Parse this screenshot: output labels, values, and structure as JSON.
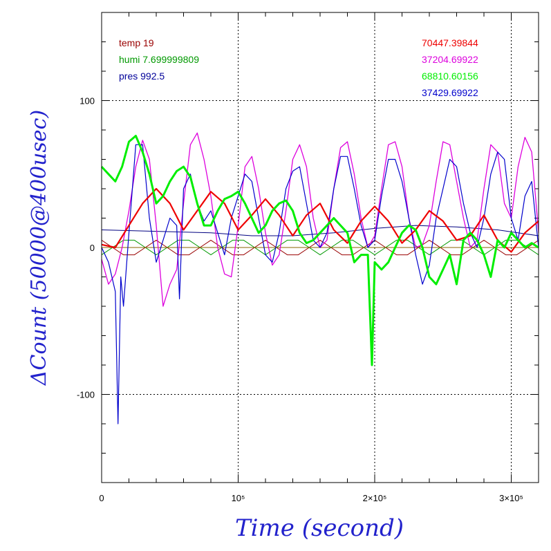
{
  "chart_data": {
    "type": "line",
    "xlabel": "Time (second)",
    "ylabel": "ΔCount (50000@400usec)",
    "xlim": [
      0,
      320000
    ],
    "ylim": [
      -160,
      160
    ],
    "x_ticks": [
      {
        "value": 0,
        "label": "0"
      },
      {
        "value": 100000,
        "label": "10⁵"
      },
      {
        "value": 200000,
        "label": "2×10⁵"
      },
      {
        "value": 300000,
        "label": "3×10⁵"
      }
    ],
    "y_ticks": [
      {
        "value": 100,
        "label": "100"
      },
      {
        "value": 0,
        "label": "0"
      },
      {
        "value": -100,
        "label": "-100"
      }
    ],
    "grid": true,
    "legend_left": [
      {
        "text": "temp 19",
        "color": "#990000"
      },
      {
        "text": "humi 7.699999809",
        "color": "#009900"
      },
      {
        "text": "pres 992.5",
        "color": "#000099"
      }
    ],
    "legend_right": [
      {
        "text": "70447.39844",
        "color": "#ee0000"
      },
      {
        "text": "37204.69922",
        "color": "#dd00dd"
      },
      {
        "text": "68810.60156",
        "color": "#00ee00"
      },
      {
        "text": "37429.69922",
        "color": "#0000cc"
      }
    ],
    "series": [
      {
        "color": "#ee0000",
        "width": 2.2,
        "x": [
          0,
          10000,
          20000,
          30000,
          40000,
          50000,
          60000,
          70000,
          80000,
          90000,
          100000,
          110000,
          120000,
          130000,
          140000,
          150000,
          160000,
          170000,
          180000,
          190000,
          200000,
          210000,
          220000,
          230000,
          240000,
          250000,
          260000,
          270000,
          280000,
          290000,
          300000,
          310000,
          320000
        ],
        "y": [
          2,
          0,
          15,
          30,
          40,
          30,
          12,
          25,
          38,
          30,
          12,
          22,
          33,
          22,
          8,
          22,
          30,
          12,
          3,
          18,
          28,
          18,
          3,
          12,
          25,
          18,
          5,
          8,
          22,
          5,
          -3,
          10,
          18
        ]
      },
      {
        "color": "#dd00dd",
        "width": 1.3,
        "x": [
          0,
          5000,
          10000,
          15000,
          20000,
          25000,
          30000,
          35000,
          40000,
          45000,
          50000,
          55000,
          60000,
          65000,
          70000,
          75000,
          80000,
          85000,
          90000,
          95000,
          100000,
          105000,
          110000,
          115000,
          120000,
          125000,
          130000,
          135000,
          140000,
          145000,
          150000,
          155000,
          160000,
          165000,
          170000,
          175000,
          180000,
          185000,
          190000,
          195000,
          200000,
          205000,
          210000,
          215000,
          220000,
          225000,
          230000,
          235000,
          240000,
          245000,
          250000,
          255000,
          260000,
          265000,
          270000,
          275000,
          280000,
          285000,
          290000,
          295000,
          300000,
          305000,
          310000,
          315000,
          320000
        ],
        "y": [
          -8,
          -25,
          -18,
          0,
          25,
          55,
          73,
          60,
          15,
          -40,
          -25,
          -15,
          30,
          70,
          78,
          60,
          35,
          0,
          -18,
          -20,
          15,
          55,
          62,
          40,
          10,
          -12,
          -5,
          25,
          60,
          70,
          55,
          20,
          0,
          5,
          40,
          68,
          72,
          50,
          20,
          0,
          8,
          40,
          70,
          72,
          55,
          20,
          0,
          2,
          15,
          45,
          72,
          70,
          45,
          20,
          0,
          5,
          40,
          70,
          65,
          30,
          20,
          55,
          75,
          65,
          10
        ]
      },
      {
        "color": "#00ee00",
        "width": 3.0,
        "x": [
          0,
          5000,
          10000,
          15000,
          20000,
          25000,
          30000,
          35000,
          40000,
          45000,
          50000,
          55000,
          60000,
          65000,
          70000,
          75000,
          80000,
          85000,
          90000,
          95000,
          100000,
          105000,
          110000,
          115000,
          120000,
          125000,
          130000,
          135000,
          140000,
          145000,
          150000,
          155000,
          160000,
          165000,
          170000,
          175000,
          180000,
          185000,
          190000,
          195000,
          198000,
          200000,
          205000,
          210000,
          215000,
          220000,
          225000,
          230000,
          235000,
          240000,
          245000,
          250000,
          255000,
          260000,
          265000,
          270000,
          275000,
          280000,
          285000,
          290000,
          295000,
          300000,
          305000,
          310000,
          315000,
          320000
        ],
        "y": [
          55,
          50,
          45,
          55,
          72,
          76,
          65,
          50,
          30,
          35,
          45,
          52,
          55,
          48,
          30,
          15,
          15,
          25,
          33,
          35,
          38,
          30,
          20,
          10,
          15,
          25,
          30,
          32,
          25,
          10,
          3,
          5,
          10,
          15,
          20,
          15,
          10,
          -10,
          -5,
          -5,
          -80,
          -10,
          -15,
          -10,
          0,
          10,
          15,
          12,
          0,
          -20,
          -25,
          -15,
          -5,
          -25,
          5,
          10,
          5,
          -5,
          -20,
          5,
          0,
          10,
          5,
          0,
          3,
          0
        ]
      },
      {
        "color": "#0000cc",
        "width": 1.2,
        "x": [
          0,
          5000,
          10000,
          12000,
          14000,
          16000,
          20000,
          25000,
          30000,
          35000,
          40000,
          45000,
          50000,
          55000,
          57000,
          60000,
          65000,
          70000,
          75000,
          80000,
          85000,
          90000,
          95000,
          100000,
          105000,
          110000,
          115000,
          120000,
          125000,
          130000,
          135000,
          140000,
          145000,
          150000,
          155000,
          160000,
          165000,
          170000,
          175000,
          180000,
          185000,
          190000,
          195000,
          200000,
          205000,
          210000,
          215000,
          220000,
          225000,
          230000,
          235000,
          240000,
          245000,
          250000,
          255000,
          260000,
          265000,
          270000,
          275000,
          280000,
          285000,
          290000,
          295000,
          300000,
          305000,
          310000,
          315000,
          320000
        ],
        "y": [
          0,
          -10,
          -30,
          -120,
          -20,
          -40,
          10,
          70,
          70,
          20,
          -10,
          5,
          20,
          15,
          -35,
          40,
          50,
          30,
          18,
          25,
          10,
          -5,
          20,
          35,
          50,
          45,
          20,
          -5,
          -10,
          10,
          40,
          52,
          55,
          30,
          5,
          0,
          10,
          40,
          62,
          62,
          40,
          15,
          0,
          5,
          35,
          60,
          60,
          45,
          20,
          -5,
          -25,
          -12,
          20,
          40,
          60,
          55,
          30,
          10,
          0,
          20,
          50,
          65,
          60,
          20,
          5,
          35,
          45,
          0
        ]
      },
      {
        "color": "#000080",
        "width": 1.0,
        "x": [
          0,
          40000,
          80000,
          110000,
          140000,
          170000,
          200000,
          230000,
          260000,
          290000,
          320000
        ],
        "y": [
          12,
          11,
          10,
          8,
          8,
          10,
          13,
          15,
          14,
          12,
          8
        ]
      },
      {
        "color": "#990000",
        "width": 1.0,
        "x": [
          0,
          8000,
          16000,
          24000,
          32000,
          40000,
          48000,
          56000,
          64000,
          72000,
          80000,
          88000,
          96000,
          104000,
          112000,
          120000,
          128000,
          136000,
          144000,
          152000,
          160000,
          168000,
          176000,
          184000,
          192000,
          200000,
          208000,
          216000,
          224000,
          232000,
          240000,
          248000,
          256000,
          264000,
          272000,
          280000,
          288000,
          296000,
          304000,
          312000,
          320000
        ],
        "y": [
          5,
          0,
          -5,
          -5,
          0,
          5,
          0,
          -5,
          -5,
          0,
          5,
          0,
          -5,
          -5,
          0,
          5,
          0,
          -5,
          -5,
          0,
          5,
          0,
          -5,
          -5,
          0,
          5,
          0,
          -5,
          -5,
          0,
          5,
          0,
          -5,
          -5,
          0,
          5,
          0,
          -5,
          -5,
          0,
          5
        ]
      },
      {
        "color": "#009900",
        "width": 1.0,
        "x": [
          0,
          8000,
          16000,
          24000,
          32000,
          40000,
          48000,
          56000,
          64000,
          72000,
          80000,
          88000,
          96000,
          104000,
          112000,
          120000,
          128000,
          136000,
          144000,
          152000,
          160000,
          168000,
          176000,
          184000,
          192000,
          200000,
          208000,
          216000,
          224000,
          232000,
          240000,
          248000,
          256000,
          264000,
          272000,
          280000,
          288000,
          296000,
          304000,
          312000,
          320000
        ],
        "y": [
          -5,
          0,
          5,
          5,
          0,
          -5,
          0,
          5,
          5,
          0,
          -5,
          0,
          5,
          5,
          0,
          -5,
          0,
          5,
          5,
          0,
          -5,
          0,
          5,
          5,
          0,
          -5,
          0,
          5,
          5,
          0,
          -5,
          0,
          5,
          5,
          0,
          -5,
          0,
          5,
          5,
          0,
          -5
        ]
      },
      {
        "color": "#886600",
        "width": 1.0,
        "x": [
          0,
          320000
        ],
        "y": [
          0,
          0
        ]
      }
    ]
  }
}
